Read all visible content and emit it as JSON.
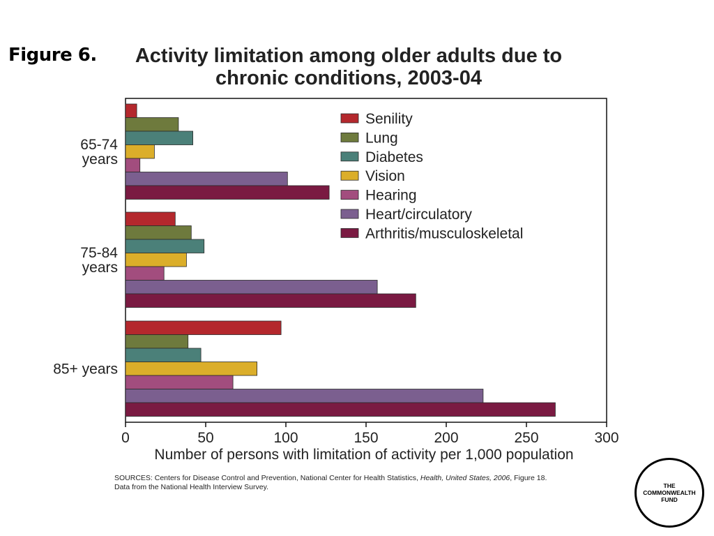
{
  "figure_label": "Figure 6.",
  "title_line1": "Activity limitation among older adults due to",
  "title_line2": "chronic conditions, 2003-04",
  "sources": {
    "prefix": "SOURCES: Centers for Disease Control and Prevention, National Center for Health Statistics, ",
    "italic": "Health, United States, 2006",
    "suffix": ", Figure 18.",
    "line2": "Data from the National Health Interview Survey."
  },
  "logo": [
    "THE",
    "COMMONWEALTH",
    "FUND"
  ],
  "chart_data": {
    "type": "bar",
    "orientation": "horizontal",
    "title": "Activity limitation among older adults due to chronic conditions, 2003-04",
    "xlabel": "Number of persons with limitation of activity per 1,000 population",
    "ylabel": "",
    "xlim": [
      0,
      300
    ],
    "xticks": [
      0,
      50,
      100,
      150,
      200,
      250,
      300
    ],
    "grid": false,
    "legend_placement": "top-right",
    "categories": [
      {
        "lines": [
          "65-74",
          "years"
        ]
      },
      {
        "lines": [
          "75-84",
          "years"
        ]
      },
      {
        "lines": [
          "85+ years"
        ]
      }
    ],
    "series": [
      {
        "name": "Senility",
        "color": "#b4282d",
        "values": [
          7,
          31,
          97
        ]
      },
      {
        "name": "Lung",
        "color": "#6e7a3d",
        "values": [
          33,
          41,
          39
        ]
      },
      {
        "name": "Diabetes",
        "color": "#4b8079",
        "values": [
          42,
          49,
          47
        ]
      },
      {
        "name": "Vision",
        "color": "#dbae2a",
        "values": [
          18,
          38,
          82
        ]
      },
      {
        "name": "Hearing",
        "color": "#a24d7e",
        "values": [
          9,
          24,
          67
        ]
      },
      {
        "name": "Heart/circulatory",
        "color": "#7b5f8f",
        "values": [
          101,
          157,
          223
        ]
      },
      {
        "name": "Arthritis/musculoskeletal",
        "color": "#7a1a42",
        "values": [
          127,
          181,
          268
        ]
      }
    ]
  }
}
